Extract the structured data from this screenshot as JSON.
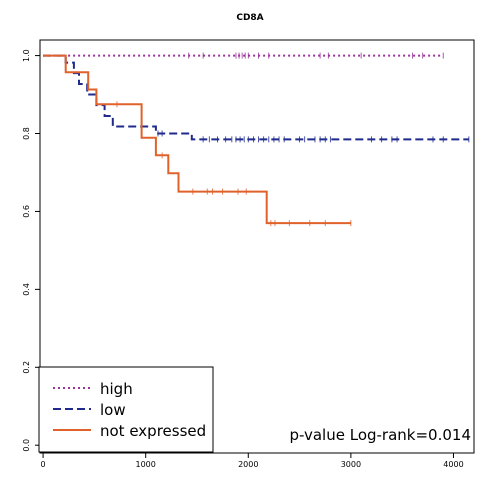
{
  "chart_data": {
    "type": "line",
    "title": "CD8A",
    "xlabel": "",
    "ylabel": "",
    "xlim": [
      -30,
      4200
    ],
    "ylim": [
      -0.02,
      1.04
    ],
    "x_ticks": [
      0,
      1000,
      2000,
      3000,
      4000
    ],
    "y_ticks": [
      0.0,
      0.2,
      0.4,
      0.6,
      0.8,
      1.0
    ],
    "x_tick_labels": [
      "0",
      "1000",
      "2000",
      "3000",
      "4000"
    ],
    "y_tick_labels": [
      "0.0",
      "0.2",
      "0.4",
      "0.6",
      "0.8",
      "1.0"
    ],
    "legend_position": "bottom-left",
    "annotation": "p-value Log-rank=0.014",
    "series": [
      {
        "name": "high",
        "color": "#993399",
        "dash": "dotted",
        "steps": [
          [
            0,
            1.0
          ],
          [
            3900,
            1.0
          ]
        ],
        "censor_x": [
          1420,
          1560,
          1880,
          1910,
          1940,
          1970,
          2000,
          2100,
          2200,
          2700,
          2780,
          3100,
          3600,
          3700,
          3900
        ]
      },
      {
        "name": "low",
        "color": "#1f2a8c",
        "dash": "dashed",
        "steps": [
          [
            0,
            1.0
          ],
          [
            220,
            1.0
          ],
          [
            220,
            0.982
          ],
          [
            300,
            0.982
          ],
          [
            300,
            0.955
          ],
          [
            350,
            0.955
          ],
          [
            350,
            0.927
          ],
          [
            430,
            0.927
          ],
          [
            430,
            0.9
          ],
          [
            520,
            0.9
          ],
          [
            520,
            0.873
          ],
          [
            600,
            0.873
          ],
          [
            600,
            0.845
          ],
          [
            680,
            0.845
          ],
          [
            680,
            0.818
          ],
          [
            1100,
            0.818
          ],
          [
            1100,
            0.8
          ],
          [
            1450,
            0.8
          ],
          [
            1450,
            0.785
          ],
          [
            4150,
            0.785
          ]
        ],
        "censor_x": [
          1120,
          1160,
          1560,
          1620,
          1700,
          1780,
          1840,
          1880,
          1920,
          1960,
          2000,
          2050,
          2100,
          2150,
          2200,
          2250,
          2300,
          2350,
          2500,
          2550,
          2650,
          2700,
          2750,
          2800,
          3200,
          3300,
          3400,
          3450,
          3800,
          3900,
          4150
        ]
      },
      {
        "name": "not expressed",
        "color": "#e0622a",
        "dash": "solid",
        "steps": [
          [
            0,
            1.0
          ],
          [
            220,
            1.0
          ],
          [
            220,
            0.957
          ],
          [
            440,
            0.957
          ],
          [
            440,
            0.913
          ],
          [
            520,
            0.913
          ],
          [
            520,
            0.875
          ],
          [
            960,
            0.875
          ],
          [
            960,
            0.789
          ],
          [
            1100,
            0.789
          ],
          [
            1100,
            0.744
          ],
          [
            1220,
            0.744
          ],
          [
            1220,
            0.698
          ],
          [
            1320,
            0.698
          ],
          [
            1320,
            0.651
          ],
          [
            2180,
            0.651
          ],
          [
            2180,
            0.57
          ],
          [
            3000,
            0.57
          ]
        ],
        "censor_x": [
          720,
          1160,
          1460,
          1600,
          1650,
          1750,
          1900,
          1980,
          2220,
          2260,
          2400,
          2600,
          2750,
          3000
        ]
      }
    ]
  }
}
